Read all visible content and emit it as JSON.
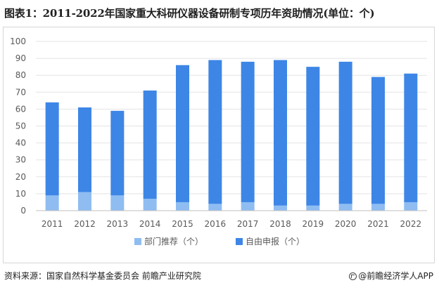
{
  "title": "图表1：2011-2022年国家重大科研仪器设备研制专项历年资助情况(单位：个)",
  "source": "资料来源：国家自然科学基金委员会 前瞻产业研究院",
  "brand": "@前瞻经济学人APP",
  "colors": {
    "dept": "#8fbdf2",
    "free": "#3d86e6",
    "grid": "#e3e3e3",
    "axis": "#bfbfbf",
    "text": "#595959"
  },
  "chart_data": {
    "type": "bar",
    "stacked": true,
    "categories": [
      "2011",
      "2012",
      "2013",
      "2014",
      "2015",
      "2016",
      "2017",
      "2018",
      "2019",
      "2020",
      "2021",
      "2022"
    ],
    "series": [
      {
        "name": "部门推荐（个）",
        "values": [
          9,
          11,
          9,
          7,
          5,
          4,
          5,
          3,
          3,
          4,
          4,
          5
        ]
      },
      {
        "name": "自由申报（个）",
        "values": [
          55,
          50,
          50,
          64,
          81,
          85,
          83,
          86,
          82,
          84,
          75,
          76
        ]
      }
    ],
    "ylim": [
      0,
      100
    ],
    "yticks": [
      0,
      10,
      20,
      30,
      40,
      50,
      60,
      70,
      80,
      90,
      100
    ],
    "grid": true,
    "legend": "bottom"
  }
}
